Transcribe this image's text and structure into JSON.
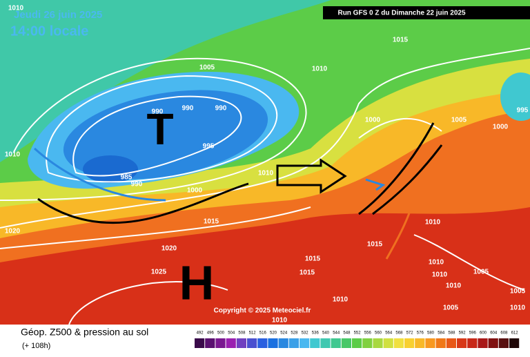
{
  "header": {
    "valid_date": "Jeudi 26 juin 2025",
    "valid_time": "14:00 locale",
    "run": "Run GFS 0 Z du Dimanche 22 juin 2025"
  },
  "map": {
    "low_letter": "T",
    "high_letter": "H",
    "copyright": "Copyright © 2025 Meteociel.fr",
    "isobar_labels": [
      "1010",
      "1015",
      "1010",
      "1005",
      "990",
      "990",
      "990",
      "995",
      "985",
      "990",
      "1010",
      "1000",
      "1010",
      "1015",
      "1020",
      "1020",
      "1025",
      "1000",
      "1005",
      "1000",
      "995",
      "1010",
      "1015",
      "1015",
      "1015",
      "1010",
      "1010",
      "1010",
      "1005",
      "1005",
      "1005",
      "1010",
      "1010",
      "1010"
    ]
  },
  "legend": {
    "title": "Géop. Z500 & pression au sol",
    "subtitle": "(+ 108h)",
    "labels": [
      492,
      496,
      500,
      504,
      508,
      512,
      516,
      520,
      524,
      528,
      532,
      536,
      540,
      544,
      548,
      552,
      556,
      560,
      564,
      568,
      572,
      576,
      580,
      584,
      588,
      592,
      596,
      600,
      604,
      608,
      612
    ],
    "colors": [
      "#3a0a4a",
      "#5a1070",
      "#7a1890",
      "#9a20b0",
      "#7040c0",
      "#4a50d0",
      "#2a60e0",
      "#1a70e0",
      "#2a88e0",
      "#3aa0e8",
      "#4ab8f0",
      "#40c8d0",
      "#40c8b0",
      "#40c890",
      "#48c868",
      "#5ccc48",
      "#80d040",
      "#a8d840",
      "#d0e040",
      "#f0e040",
      "#f8d030",
      "#f8b828",
      "#f89820",
      "#f07818",
      "#e85818",
      "#d83818",
      "#c82818",
      "#a81818",
      "#801010",
      "#581010",
      "#200808"
    ]
  }
}
